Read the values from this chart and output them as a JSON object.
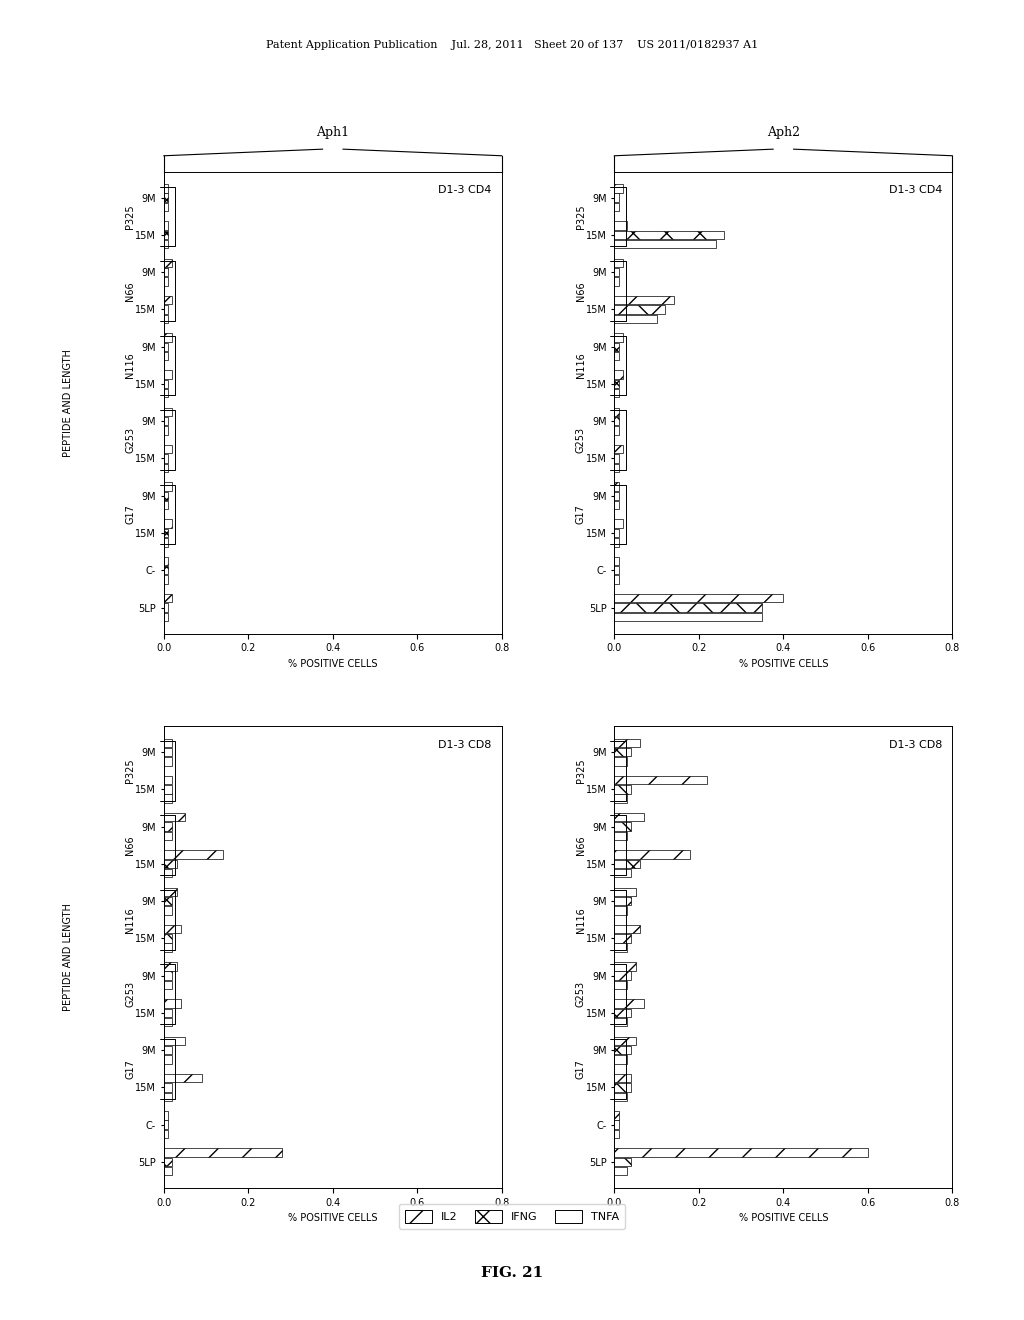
{
  "header_text": "Patent Application Publication    Jul. 28, 2011   Sheet 20 of 137    US 2011/0182937 A1",
  "figure_label": "FIG. 21",
  "top_labels": [
    "Aph1",
    "Aph2"
  ],
  "subplot_titles": [
    "D1-3 CD4",
    "D1-3 CD4",
    "D1-3 CD8",
    "D1-3 CD8"
  ],
  "ylabel": "PEPTIDE AND LENGTH",
  "xlabel": "% POSITIVE CELLS",
  "ytick_labels": [
    "5LP",
    "C-",
    "15M",
    "9M",
    "15M",
    "9M",
    "15M",
    "9M",
    "15M",
    "9M",
    "15M",
    "9M"
  ],
  "group_labels": [
    "G17",
    "G253",
    "N116",
    "N66",
    "P325"
  ],
  "xlim": [
    0.0,
    0.8
  ],
  "xticks": [
    0.0,
    0.2,
    0.4,
    0.6,
    0.8
  ],
  "legend_labels": [
    "IL2",
    "IFNG",
    "TNFA"
  ],
  "hatch_patterns": [
    "/",
    "x",
    "="
  ],
  "bar_height": 0.25,
  "bar_colors": [
    "white",
    "white",
    "white"
  ],
  "bar_edge_colors": [
    "black",
    "black",
    "black"
  ],
  "plots": {
    "aph1_cd4": {
      "IL2": [
        0.02,
        0.01,
        0.02,
        0.02,
        0.02,
        0.02,
        0.02,
        0.02,
        0.02,
        0.02,
        0.01,
        0.01
      ],
      "IFNG": [
        0.01,
        0.01,
        0.01,
        0.01,
        0.01,
        0.01,
        0.01,
        0.01,
        0.01,
        0.01,
        0.01,
        0.01
      ],
      "TNFA": [
        0.01,
        0.01,
        0.01,
        0.01,
        0.01,
        0.01,
        0.01,
        0.01,
        0.01,
        0.01,
        0.01,
        0.01
      ]
    },
    "aph2_cd4": {
      "IL2": [
        0.4,
        0.01,
        0.02,
        0.01,
        0.02,
        0.01,
        0.02,
        0.02,
        0.14,
        0.02,
        0.03,
        0.02
      ],
      "IFNG": [
        0.35,
        0.01,
        0.01,
        0.01,
        0.01,
        0.01,
        0.01,
        0.01,
        0.12,
        0.01,
        0.26,
        0.01
      ],
      "TNFA": [
        0.35,
        0.01,
        0.01,
        0.01,
        0.01,
        0.01,
        0.01,
        0.01,
        0.1,
        0.01,
        0.24,
        0.01
      ]
    },
    "aph1_cd8": {
      "IL2": [
        0.28,
        0.01,
        0.09,
        0.05,
        0.04,
        0.03,
        0.04,
        0.03,
        0.14,
        0.05,
        0.02,
        0.02
      ],
      "IFNG": [
        0.02,
        0.01,
        0.02,
        0.02,
        0.02,
        0.02,
        0.02,
        0.02,
        0.03,
        0.02,
        0.02,
        0.02
      ],
      "TNFA": [
        0.02,
        0.01,
        0.02,
        0.02,
        0.02,
        0.02,
        0.02,
        0.02,
        0.02,
        0.02,
        0.02,
        0.02
      ]
    },
    "aph2_cd8": {
      "IL2": [
        0.6,
        0.01,
        0.04,
        0.05,
        0.07,
        0.05,
        0.06,
        0.05,
        0.18,
        0.07,
        0.22,
        0.06
      ],
      "IFNG": [
        0.04,
        0.01,
        0.04,
        0.04,
        0.04,
        0.04,
        0.04,
        0.04,
        0.06,
        0.04,
        0.04,
        0.04
      ],
      "TNFA": [
        0.03,
        0.01,
        0.03,
        0.03,
        0.03,
        0.03,
        0.03,
        0.03,
        0.04,
        0.03,
        0.03,
        0.03
      ]
    }
  }
}
